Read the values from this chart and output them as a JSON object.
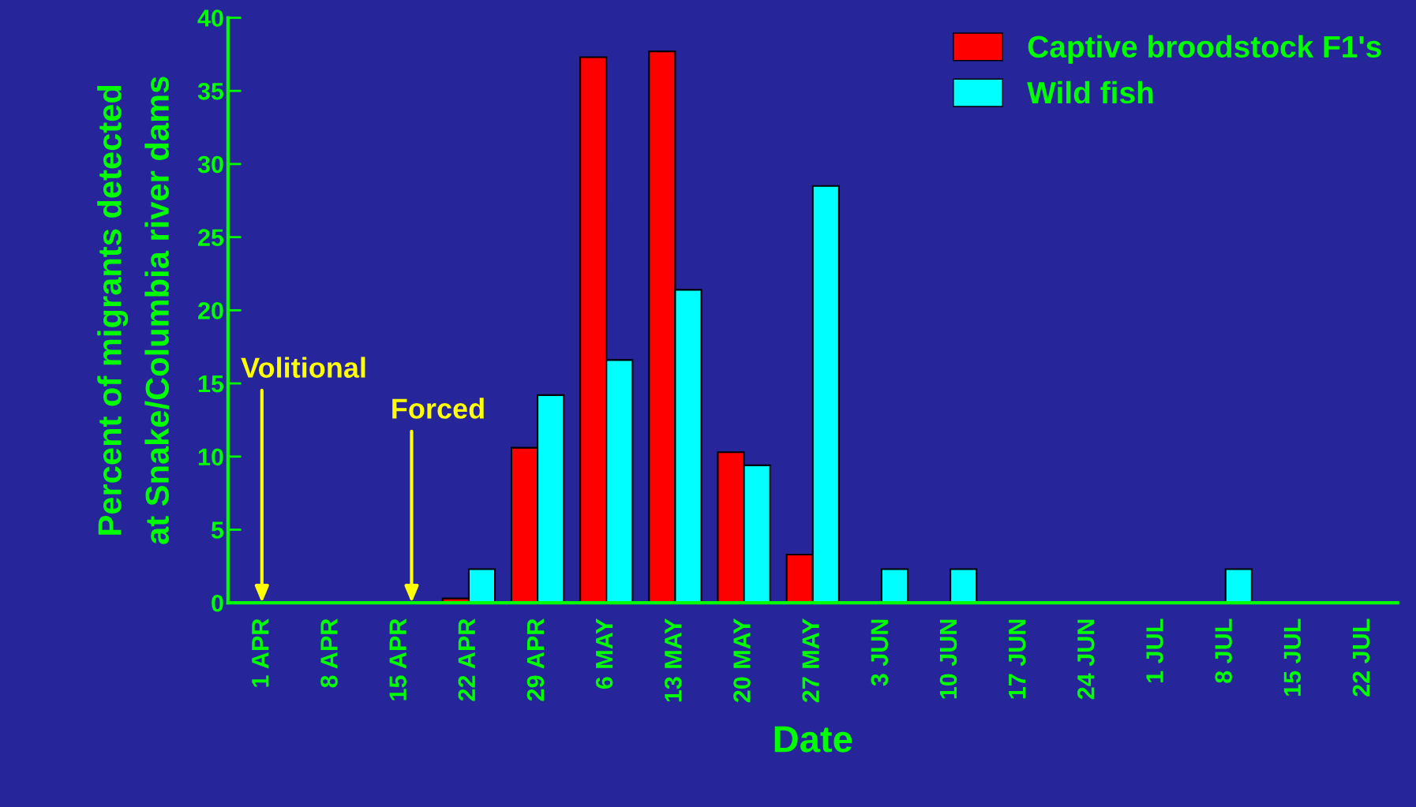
{
  "chart_data": {
    "type": "bar",
    "categories": [
      "1 APR",
      "8 APR",
      "15 APR",
      "22 APR",
      "29 APR",
      "6 MAY",
      "13 MAY",
      "20 MAY",
      "27 MAY",
      "3 JUN",
      "10 JUN",
      "17 JUN",
      "24 JUN",
      "1 JUL",
      "8 JUL",
      "15 JUL",
      "22 JUL"
    ],
    "series": [
      {
        "name": "Captive broodstock F1's",
        "color": "#ff0000",
        "values": [
          0,
          0,
          0,
          0.3,
          10.6,
          37.3,
          37.7,
          10.3,
          3.3,
          0,
          0,
          0,
          0,
          0,
          0,
          0,
          0
        ]
      },
      {
        "name": "Wild fish",
        "color": "#00ffff",
        "values": [
          0,
          0,
          0,
          2.3,
          14.2,
          16.6,
          21.4,
          9.4,
          28.5,
          2.3,
          2.3,
          0,
          0,
          0,
          2.3,
          0,
          0
        ]
      }
    ],
    "xlabel": "Date",
    "ylabel": "Percent of migrants detected\nat Snake/Columbia river dams",
    "ylim": [
      0,
      40
    ],
    "yticks": [
      0,
      5,
      10,
      15,
      20,
      25,
      30,
      35,
      40
    ],
    "annotations": [
      "Volitional",
      "Forced"
    ],
    "legend": "top right",
    "grid": false
  }
}
